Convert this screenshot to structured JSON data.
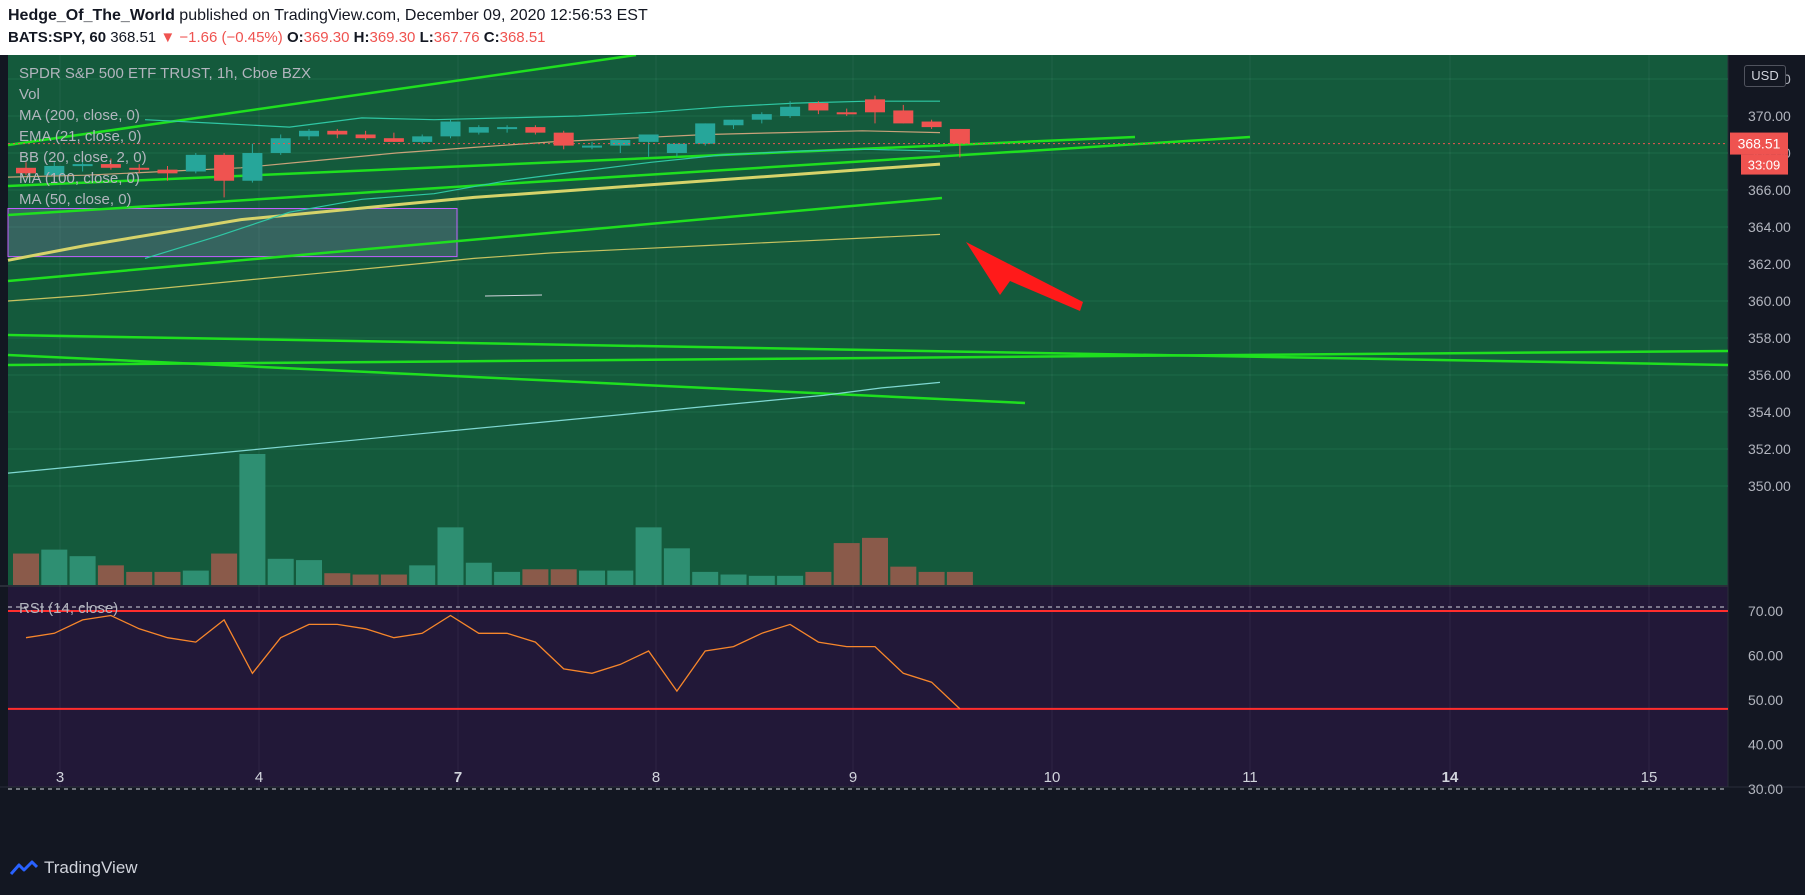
{
  "header": {
    "author": "Hedge_Of_The_World",
    "published": "published on TradingView.com, December 09, 2020 12:56:53 EST",
    "symbol": "BATS:SPY, 60",
    "last": "368.51",
    "arrow": "▼",
    "change": "−1.66 (−0.45%)",
    "o_label": "O:",
    "o_value": "369.30",
    "h_label": "H:",
    "h_value": "369.30",
    "l_label": "L:",
    "l_value": "367.76",
    "c_label": "C:",
    "c_value": "368.51"
  },
  "legend": {
    "title": "SPDR S&P 500 ETF TRUST, 1h, Cboe BZX",
    "items": [
      "Vol",
      "MA (200, close, 0)",
      "EMA (21, close, 0)",
      "BB (20, close, 2, 0)",
      "MA (100, close, 0)",
      "MA (50, close, 0)"
    ],
    "rsi": "RSI (14, close)"
  },
  "price_axis": {
    "currency": "USD",
    "last_price": "368.51",
    "countdown": "33:09",
    "ticks": [
      "372.00",
      "370.00",
      "368.00",
      "366.00",
      "364.00",
      "362.00",
      "360.00",
      "358.00",
      "356.00",
      "354.00",
      "352.00",
      "350.00"
    ]
  },
  "rsi_axis": {
    "ticks": [
      "70.00",
      "60.00",
      "50.00",
      "40.00",
      "30.00"
    ]
  },
  "time_axis": {
    "labels": [
      "3",
      "4",
      "7",
      "8",
      "9",
      "10",
      "11",
      "14",
      "15"
    ],
    "bold": [
      "7",
      "14"
    ]
  },
  "footer": {
    "brand": "TradingView",
    "brand_icon": "tradingview-logo-icon"
  },
  "colors": {
    "bg": "#131722",
    "price_pane": "#145a3c",
    "rsi_pane": "#221838",
    "up": "#26a69a",
    "down": "#ef5350",
    "trend": "#1fe01f",
    "ma": "#c7c260",
    "rsi_line": "#f7862b"
  },
  "chart_data": [
    {
      "type": "candlestick",
      "title": "SPDR S&P 500 ETF TRUST, 1h, Cboe BZX",
      "ylim": [
        349,
        373
      ],
      "candles": [
        {
          "o": 367.2,
          "h": 367.5,
          "l": 366.8,
          "c": 366.9
        },
        {
          "o": 366.8,
          "h": 367.5,
          "l": 366.6,
          "c": 367.3
        },
        {
          "o": 367.3,
          "h": 367.6,
          "l": 367.0,
          "c": 367.4
        },
        {
          "o": 367.4,
          "h": 367.7,
          "l": 367.1,
          "c": 367.2
        },
        {
          "o": 367.2,
          "h": 367.4,
          "l": 366.9,
          "c": 367.1
        },
        {
          "o": 367.1,
          "h": 367.3,
          "l": 366.5,
          "c": 366.9
        },
        {
          "o": 367.0,
          "h": 368.0,
          "l": 366.9,
          "c": 367.9
        },
        {
          "o": 367.9,
          "h": 368.0,
          "l": 365.6,
          "c": 366.5
        },
        {
          "o": 366.5,
          "h": 368.5,
          "l": 366.4,
          "c": 368.0
        },
        {
          "o": 368.0,
          "h": 369.0,
          "l": 367.9,
          "c": 368.8
        },
        {
          "o": 368.9,
          "h": 369.3,
          "l": 368.7,
          "c": 369.2
        },
        {
          "o": 369.2,
          "h": 369.3,
          "l": 368.8,
          "c": 369.0
        },
        {
          "o": 369.0,
          "h": 369.2,
          "l": 368.7,
          "c": 368.8
        },
        {
          "o": 368.8,
          "h": 369.1,
          "l": 368.6,
          "c": 368.6
        },
        {
          "o": 368.6,
          "h": 369.0,
          "l": 368.5,
          "c": 368.9
        },
        {
          "o": 368.9,
          "h": 369.8,
          "l": 368.8,
          "c": 369.7
        },
        {
          "o": 369.1,
          "h": 369.5,
          "l": 369.0,
          "c": 369.4
        },
        {
          "o": 369.3,
          "h": 369.5,
          "l": 369.1,
          "c": 369.4
        },
        {
          "o": 369.4,
          "h": 369.5,
          "l": 369.0,
          "c": 369.1
        },
        {
          "o": 369.1,
          "h": 369.2,
          "l": 368.2,
          "c": 368.4
        },
        {
          "o": 368.4,
          "h": 368.6,
          "l": 368.2,
          "c": 368.4
        },
        {
          "o": 368.4,
          "h": 368.7,
          "l": 368.0,
          "c": 368.7
        },
        {
          "o": 368.6,
          "h": 369.0,
          "l": 367.8,
          "c": 369.0
        },
        {
          "o": 368.0,
          "h": 368.5,
          "l": 367.8,
          "c": 368.5
        },
        {
          "o": 368.5,
          "h": 369.6,
          "l": 368.4,
          "c": 369.6
        },
        {
          "o": 369.5,
          "h": 369.8,
          "l": 369.3,
          "c": 369.8
        },
        {
          "o": 369.8,
          "h": 370.2,
          "l": 369.6,
          "c": 370.1
        },
        {
          "o": 370.0,
          "h": 370.8,
          "l": 369.9,
          "c": 370.5
        },
        {
          "o": 370.7,
          "h": 370.8,
          "l": 370.1,
          "c": 370.3
        },
        {
          "o": 370.2,
          "h": 370.4,
          "l": 370.0,
          "c": 370.1
        },
        {
          "o": 370.9,
          "h": 371.1,
          "l": 369.6,
          "c": 370.2
        },
        {
          "o": 370.3,
          "h": 370.6,
          "l": 369.6,
          "c": 369.6
        },
        {
          "o": 369.7,
          "h": 369.8,
          "l": 369.3,
          "c": 369.4
        },
        {
          "o": 369.3,
          "h": 369.3,
          "l": 367.76,
          "c": 368.51
        }
      ],
      "volume_rel": [
        0.24,
        0.27,
        0.22,
        0.15,
        0.1,
        0.1,
        0.11,
        0.24,
        1.0,
        0.2,
        0.19,
        0.09,
        0.08,
        0.08,
        0.15,
        0.44,
        0.17,
        0.1,
        0.12,
        0.12,
        0.11,
        0.11,
        0.44,
        0.28,
        0.1,
        0.08,
        0.07,
        0.07,
        0.1,
        0.32,
        0.36,
        0.14,
        0.1,
        0.1
      ],
      "lines": {
        "ma200": [
          350.7,
          351.0,
          351.3,
          351.6,
          351.9,
          352.2,
          352.5,
          352.8,
          353.1,
          353.4,
          353.7,
          354.0,
          354.3,
          354.6,
          354.9,
          355.3,
          355.6
        ],
        "ma100": [
          360.0,
          360.3,
          360.7,
          361.1,
          361.5,
          361.9,
          362.3,
          362.6,
          362.8,
          363.0,
          363.2,
          363.4,
          363.6
        ],
        "ma50": [
          362.2,
          363.0,
          363.7,
          364.4,
          364.8,
          365.2,
          365.6,
          365.9,
          366.2,
          366.5,
          366.8,
          367.1,
          367.4
        ],
        "ema21": [
          366.7,
          366.8,
          367.0,
          367.2,
          367.6,
          368.0,
          368.3,
          368.6,
          368.8,
          369.0,
          369.1,
          369.2,
          369.1
        ]
      }
    },
    {
      "type": "line",
      "title": "RSI (14, close)",
      "ylim": [
        28,
        73
      ],
      "values": [
        64,
        65,
        68,
        69,
        66,
        64,
        63,
        68,
        56,
        64,
        67,
        67,
        66,
        64,
        65,
        69,
        65,
        65,
        63,
        57,
        56,
        58,
        61,
        52,
        61,
        62,
        65,
        67,
        63,
        62,
        62,
        56,
        54,
        48
      ],
      "levels": [
        70,
        48
      ]
    }
  ]
}
